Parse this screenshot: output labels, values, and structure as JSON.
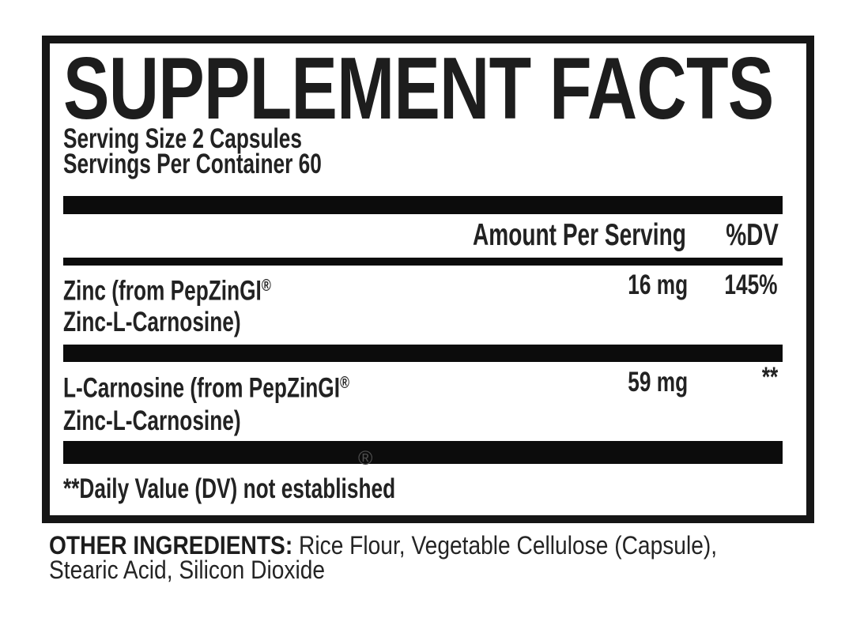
{
  "label": {
    "title": "SUPPLEMENT FACTS",
    "serving_size": "Serving Size 2 Capsules",
    "servings_per_container": "Servings Per Container 60",
    "columns": {
      "amount": "Amount Per Serving",
      "dv": "%DV"
    },
    "rows": [
      {
        "name_line1": "Zinc (from PepZinGI",
        "name_line2": "Zinc-L-Carnosine)",
        "amount": "16 mg",
        "dv": "145%"
      },
      {
        "name_line1": "L-Carnosine (from PepZinGI",
        "name_line2": "Zinc-L-Carnosine)",
        "amount": "59 mg",
        "dv": "**"
      }
    ],
    "registered_mark": "®",
    "footnote": "**Daily Value (DV) not established"
  },
  "footer": {
    "other_ingredients_label": "OTHER INGREDIENTS:",
    "other_ingredients_line1_rest": " Rice Flour, Vegetable Cellulose (Capsule),",
    "other_ingredients_line2": "Stearic Acid, Silicon Dioxide"
  },
  "colors": {
    "background": "#ffffff",
    "text": "#212121",
    "bar": "#0c0c0c",
    "border": "#161616",
    "registered_mark_gray": "#4f4f4f"
  }
}
